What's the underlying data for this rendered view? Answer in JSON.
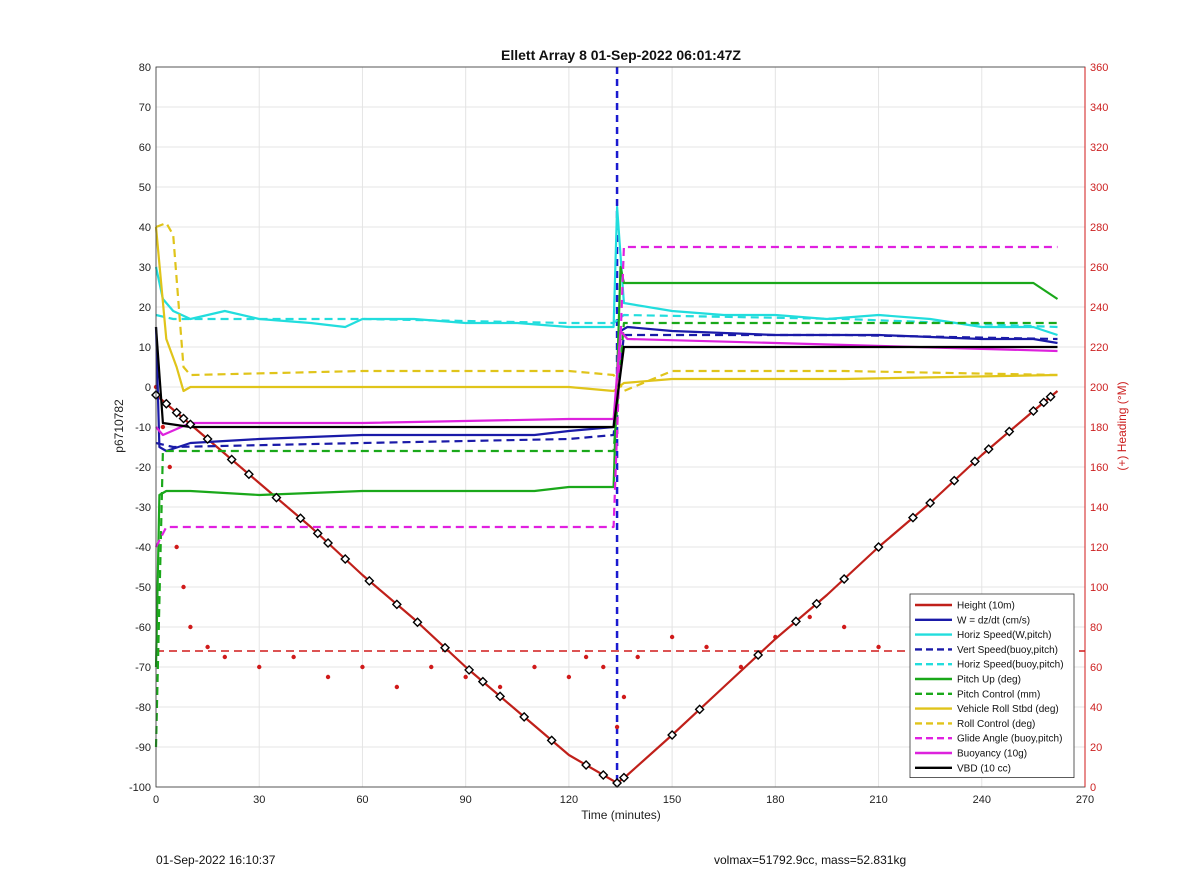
{
  "footer": {
    "left": "01-Sep-2022 16:10:37",
    "right": "volmax=51792.9cc, mass=52.831kg"
  },
  "colors": {
    "height": "#c0201a",
    "w": "#1a1aa8",
    "horiz": "#22dddd",
    "pitch": "#1aa81a",
    "roll": "#e0c41a",
    "glide": "#e020e0",
    "buoy": "#dd22dd",
    "vbd": "#000000",
    "heading": "#d01a1a",
    "apogee": "#1a1ad0"
  },
  "chart_data": {
    "type": "line",
    "title": "Ellett Array 8 01-Sep-2022 06:01:47Z",
    "xlabel": "Time (minutes)",
    "ylabel": "p6710782",
    "y2label": "(+) Heading (°M)",
    "xlim": [
      0,
      270
    ],
    "ylim": [
      -100,
      80
    ],
    "y2lim": [
      0,
      360
    ],
    "xticks": [
      0,
      30,
      60,
      90,
      120,
      150,
      180,
      210,
      240,
      270
    ],
    "yticks": [
      -100,
      -90,
      -80,
      -70,
      -60,
      -50,
      -40,
      -30,
      -20,
      -10,
      0,
      10,
      20,
      30,
      40,
      50,
      60,
      70,
      80
    ],
    "y2ticks": [
      0,
      20,
      40,
      60,
      80,
      100,
      120,
      140,
      160,
      180,
      200,
      220,
      240,
      260,
      280,
      300,
      320,
      340,
      360
    ],
    "grid": true,
    "legend_position": "bottom-right",
    "apogee_time": 134,
    "series": [
      {
        "name": "Height (10m)",
        "key": "height",
        "style": "solid",
        "x": [
          0,
          15,
          30,
          45,
          60,
          75,
          90,
          105,
          120,
          134,
          137,
          150,
          165,
          180,
          195,
          210,
          225,
          240,
          255,
          262
        ],
        "y": [
          -2,
          -13,
          -24,
          -35,
          -47,
          -58,
          -70,
          -81,
          -92,
          -99,
          -97,
          -87,
          -75,
          -63,
          -52,
          -40,
          -29,
          -17,
          -6,
          -1
        ]
      },
      {
        "name": "W = dz/dt (cm/s)",
        "key": "w",
        "style": "solid",
        "x": [
          0,
          1,
          3,
          10,
          30,
          60,
          90,
          110,
          120,
          133,
          135,
          137,
          150,
          180,
          210,
          240,
          255,
          262
        ],
        "y": [
          15,
          -15,
          -16,
          -14,
          -13,
          -12,
          -12,
          -12,
          -11,
          -10,
          14,
          15,
          14,
          13,
          13,
          12,
          12,
          11
        ]
      },
      {
        "name": "Horiz Speed(W,pitch)",
        "key": "horiz",
        "style": "solid",
        "x": [
          0,
          2,
          5,
          10,
          20,
          30,
          45,
          55,
          60,
          75,
          90,
          105,
          120,
          133,
          134,
          136,
          150,
          165,
          180,
          195,
          210,
          225,
          240,
          255,
          262
        ],
        "y": [
          30,
          22,
          19,
          17,
          19,
          17,
          16,
          15,
          17,
          17,
          16,
          16,
          15,
          15,
          45,
          21,
          19,
          18,
          18,
          17,
          18,
          17,
          15,
          15,
          13
        ]
      },
      {
        "name": "Vert Speed(buoy,pitch)",
        "key": "w",
        "style": "dashed",
        "x": [
          0,
          5,
          60,
          120,
          133,
          136,
          200,
          262
        ],
        "y": [
          -14,
          -15,
          -14,
          -13,
          -12,
          13,
          13,
          12
        ]
      },
      {
        "name": "Horiz Speed(buoy,pitch)",
        "key": "horiz",
        "style": "dashed",
        "x": [
          0,
          5,
          60,
          120,
          133,
          136,
          200,
          262
        ],
        "y": [
          18,
          17,
          17,
          16,
          16,
          18,
          17,
          15
        ]
      },
      {
        "name": "Pitch Up (deg)",
        "key": "pitch",
        "style": "solid",
        "x": [
          0,
          1,
          3,
          10,
          30,
          60,
          90,
          110,
          120,
          133,
          135,
          136,
          150,
          180,
          210,
          240,
          255,
          262
        ],
        "y": [
          -70,
          -27,
          -26,
          -26,
          -27,
          -26,
          -26,
          -26,
          -25,
          -25,
          30,
          26,
          26,
          26,
          26,
          26,
          26,
          22
        ]
      },
      {
        "name": "Pitch Control (mm)",
        "key": "pitch",
        "style": "dashed",
        "x": [
          0,
          2,
          10,
          60,
          120,
          133,
          136,
          200,
          262
        ],
        "y": [
          -90,
          -16,
          -16,
          -16,
          -16,
          -16,
          16,
          16,
          16
        ]
      },
      {
        "name": "Vehicle Roll Stbd (deg)",
        "key": "roll",
        "style": "solid",
        "x": [
          0,
          3,
          6,
          8,
          10,
          60,
          120,
          133,
          136,
          150,
          200,
          262
        ],
        "y": [
          40,
          12,
          5,
          -1,
          0,
          0,
          0,
          -1,
          1,
          2,
          2,
          3
        ]
      },
      {
        "name": "Roll Control (deg)",
        "key": "roll",
        "style": "dashed",
        "x": [
          0,
          3,
          5,
          8,
          10,
          60,
          120,
          133,
          136,
          150,
          200,
          262
        ],
        "y": [
          40,
          41,
          38,
          5,
          3,
          4,
          4,
          3,
          -1,
          4,
          4,
          3
        ]
      },
      {
        "name": "Glide Angle (buoy,pitch)",
        "key": "glide",
        "style": "dashed",
        "x": [
          0,
          3,
          10,
          60,
          120,
          133,
          136,
          200,
          262
        ],
        "y": [
          -40,
          -35,
          -35,
          -35,
          -35,
          -35,
          35,
          35,
          35
        ]
      },
      {
        "name": "Buoyancy (10g)",
        "key": "buoy",
        "style": "solid",
        "x": [
          0,
          2,
          10,
          60,
          120,
          133,
          135,
          137,
          180,
          262
        ],
        "y": [
          -10,
          -12,
          -9,
          -9,
          -8,
          -8,
          14,
          12,
          11,
          9
        ]
      },
      {
        "name": "VBD (10 cc)",
        "key": "vbd",
        "style": "solid",
        "x": [
          0,
          2,
          10,
          60,
          120,
          133,
          136,
          180,
          262
        ],
        "y": [
          15,
          -9,
          -10,
          -10,
          -10,
          -10,
          10,
          10,
          10
        ]
      }
    ],
    "heading_dots": {
      "name": "(+) Heading (°M)",
      "x": [
        0,
        2,
        4,
        6,
        8,
        10,
        15,
        20,
        30,
        40,
        50,
        60,
        70,
        80,
        90,
        100,
        110,
        120,
        125,
        130,
        134,
        136,
        140,
        150,
        160,
        170,
        180,
        190,
        200,
        210,
        220,
        230,
        240,
        250,
        255,
        260,
        262
      ],
      "y": [
        200,
        180,
        160,
        120,
        100,
        80,
        70,
        65,
        60,
        65,
        55,
        60,
        50,
        60,
        55,
        50,
        60,
        55,
        65,
        60,
        30,
        45,
        65,
        75,
        70,
        60,
        75,
        85,
        80,
        70,
        90,
        75,
        85,
        70,
        50,
        80,
        75
      ]
    },
    "heading_mean": 68,
    "markers_x": [
      0,
      3,
      6,
      8,
      10,
      15,
      22,
      27,
      35,
      42,
      47,
      50,
      55,
      62,
      70,
      76,
      84,
      91,
      95,
      100,
      107,
      115,
      125,
      130,
      134,
      136,
      150,
      158,
      175,
      186,
      192,
      200,
      210,
      220,
      225,
      232,
      238,
      242,
      248,
      255,
      258,
      260
    ]
  }
}
